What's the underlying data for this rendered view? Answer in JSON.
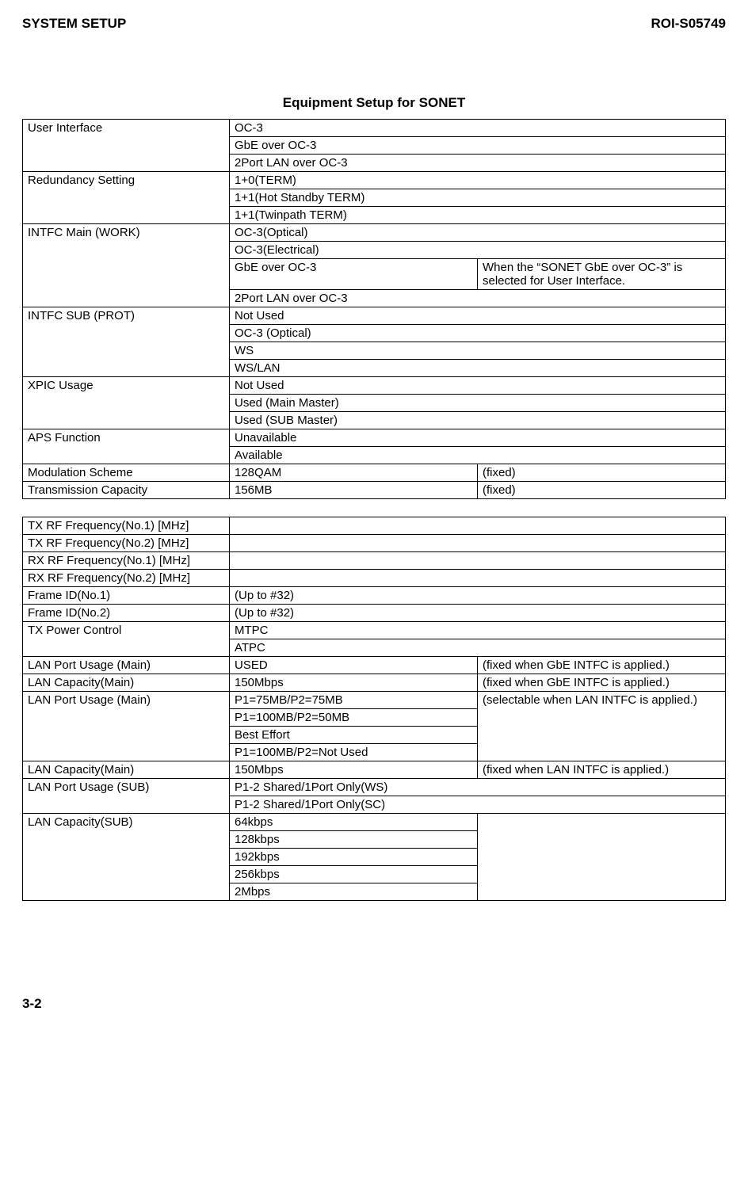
{
  "header": {
    "left": "SYSTEM SETUP",
    "right": "ROI-S05749"
  },
  "title": "Equipment Setup for SONET",
  "table1": [
    {
      "label": "User Interface",
      "rows": [
        {
          "value": " OC-3",
          "span": 2
        },
        {
          "value": " GbE over OC-3",
          "span": 2
        },
        {
          "value": "2Port LAN over OC-3",
          "span": 2
        }
      ]
    },
    {
      "label": "Redundancy Setting",
      "rows": [
        {
          "value": "1+0(TERM)",
          "span": 2
        },
        {
          "value": "1+1(Hot Standby TERM)",
          "span": 2
        },
        {
          "value": "1+1(Twinpath TERM)",
          "span": 2
        }
      ]
    },
    {
      "label": "INTFC Main (WORK)",
      "rows": [
        {
          "value": "OC-3(Optical)",
          "span": 2
        },
        {
          "value": "OC-3(Electrical)",
          "span": 2
        },
        {
          "value": " GbE over OC-3",
          "note": "When the “SONET GbE over OC-3” is selected for User Interface."
        },
        {
          "value": "2Port LAN over OC-3",
          "span": 2
        }
      ]
    },
    {
      "label": "INTFC SUB (PROT)",
      "rows": [
        {
          "value": "Not Used",
          "span": 2
        },
        {
          "value": "OC-3 (Optical)",
          "span": 2
        },
        {
          "value": "WS",
          "span": 2
        },
        {
          "value": "WS/LAN",
          "span": 2
        }
      ]
    },
    {
      "label": "XPIC Usage",
      "rows": [
        {
          "value": "Not Used",
          "span": 2
        },
        {
          "value": "Used (Main Master)",
          "span": 2
        },
        {
          "value": "Used (SUB Master)",
          "span": 2
        }
      ]
    },
    {
      "label": "APS Function",
      "rows": [
        {
          "value": "Unavailable",
          "span": 2
        },
        {
          "value": "Available",
          "span": 2
        }
      ]
    },
    {
      "label": "Modulation Scheme",
      "rows": [
        {
          "value": "128QAM",
          "note": "(fixed)"
        }
      ]
    },
    {
      "label": "Transmission Capacity",
      "rows": [
        {
          "value": "156MB",
          "note": "(fixed)"
        }
      ]
    }
  ],
  "table2": [
    {
      "label": "TX RF Frequency(No.1) [MHz]",
      "rows": [
        {
          "value": "",
          "span": 2
        }
      ]
    },
    {
      "label": "TX RF Frequency(No.2) [MHz]",
      "rows": [
        {
          "value": "",
          "span": 2
        }
      ]
    },
    {
      "label": "RX RF Frequency(No.1) [MHz]",
      "rows": [
        {
          "value": "",
          "span": 2
        }
      ]
    },
    {
      "label": "RX RF Frequency(No.2) [MHz]",
      "rows": [
        {
          "value": "",
          "span": 2
        }
      ]
    },
    {
      "label": "Frame ID(No.1)",
      "rows": [
        {
          "value": "(Up to #32)",
          "span": 2
        }
      ]
    },
    {
      "label": "Frame ID(No.2)",
      "rows": [
        {
          "value": "(Up to #32)",
          "span": 2
        }
      ]
    },
    {
      "label": "TX Power Control",
      "rows": [
        {
          "value": "MTPC",
          "span": 2
        },
        {
          "value": "ATPC",
          "span": 2
        }
      ]
    },
    {
      "label": "LAN Port Usage (Main)",
      "rows": [
        {
          "value": "USED",
          "note": "(fixed when GbE INTFC is applied.)"
        }
      ]
    },
    {
      "label": "LAN Capacity(Main)",
      "rows": [
        {
          "value": "150Mbps",
          "note": "(fixed when GbE INTFC is applied.)"
        }
      ]
    },
    {
      "label": "LAN Port Usage (Main)",
      "rows": [
        {
          "value": "P1=75MB/P2=75MB",
          "note": "(selectable when LAN INTFC is applied.)",
          "note_rowspan": 4
        },
        {
          "value": "P1=100MB/P2=50MB"
        },
        {
          "value": "Best Effort"
        },
        {
          "value": "P1=100MB/P2=Not Used"
        }
      ]
    },
    {
      "label": "LAN Capacity(Main)",
      "rows": [
        {
          "value": "150Mbps",
          "note": "(fixed when LAN INTFC is applied.)"
        }
      ]
    },
    {
      "label": "LAN Port Usage (SUB)",
      "rows": [
        {
          "value": "P1-2 Shared/1Port Only(WS)",
          "span": 2
        },
        {
          "value": "P1-2 Shared/1Port Only(SC)",
          "span": 2
        }
      ]
    },
    {
      "label": "LAN Capacity(SUB)",
      "rows": [
        {
          "value": "64kbps",
          "note": "",
          "note_rowspan": 5
        },
        {
          "value": "128kbps"
        },
        {
          "value": "192kbps"
        },
        {
          "value": "256kbps"
        },
        {
          "value": "2Mbps"
        }
      ]
    }
  ],
  "footer": {
    "page": "3-2"
  }
}
